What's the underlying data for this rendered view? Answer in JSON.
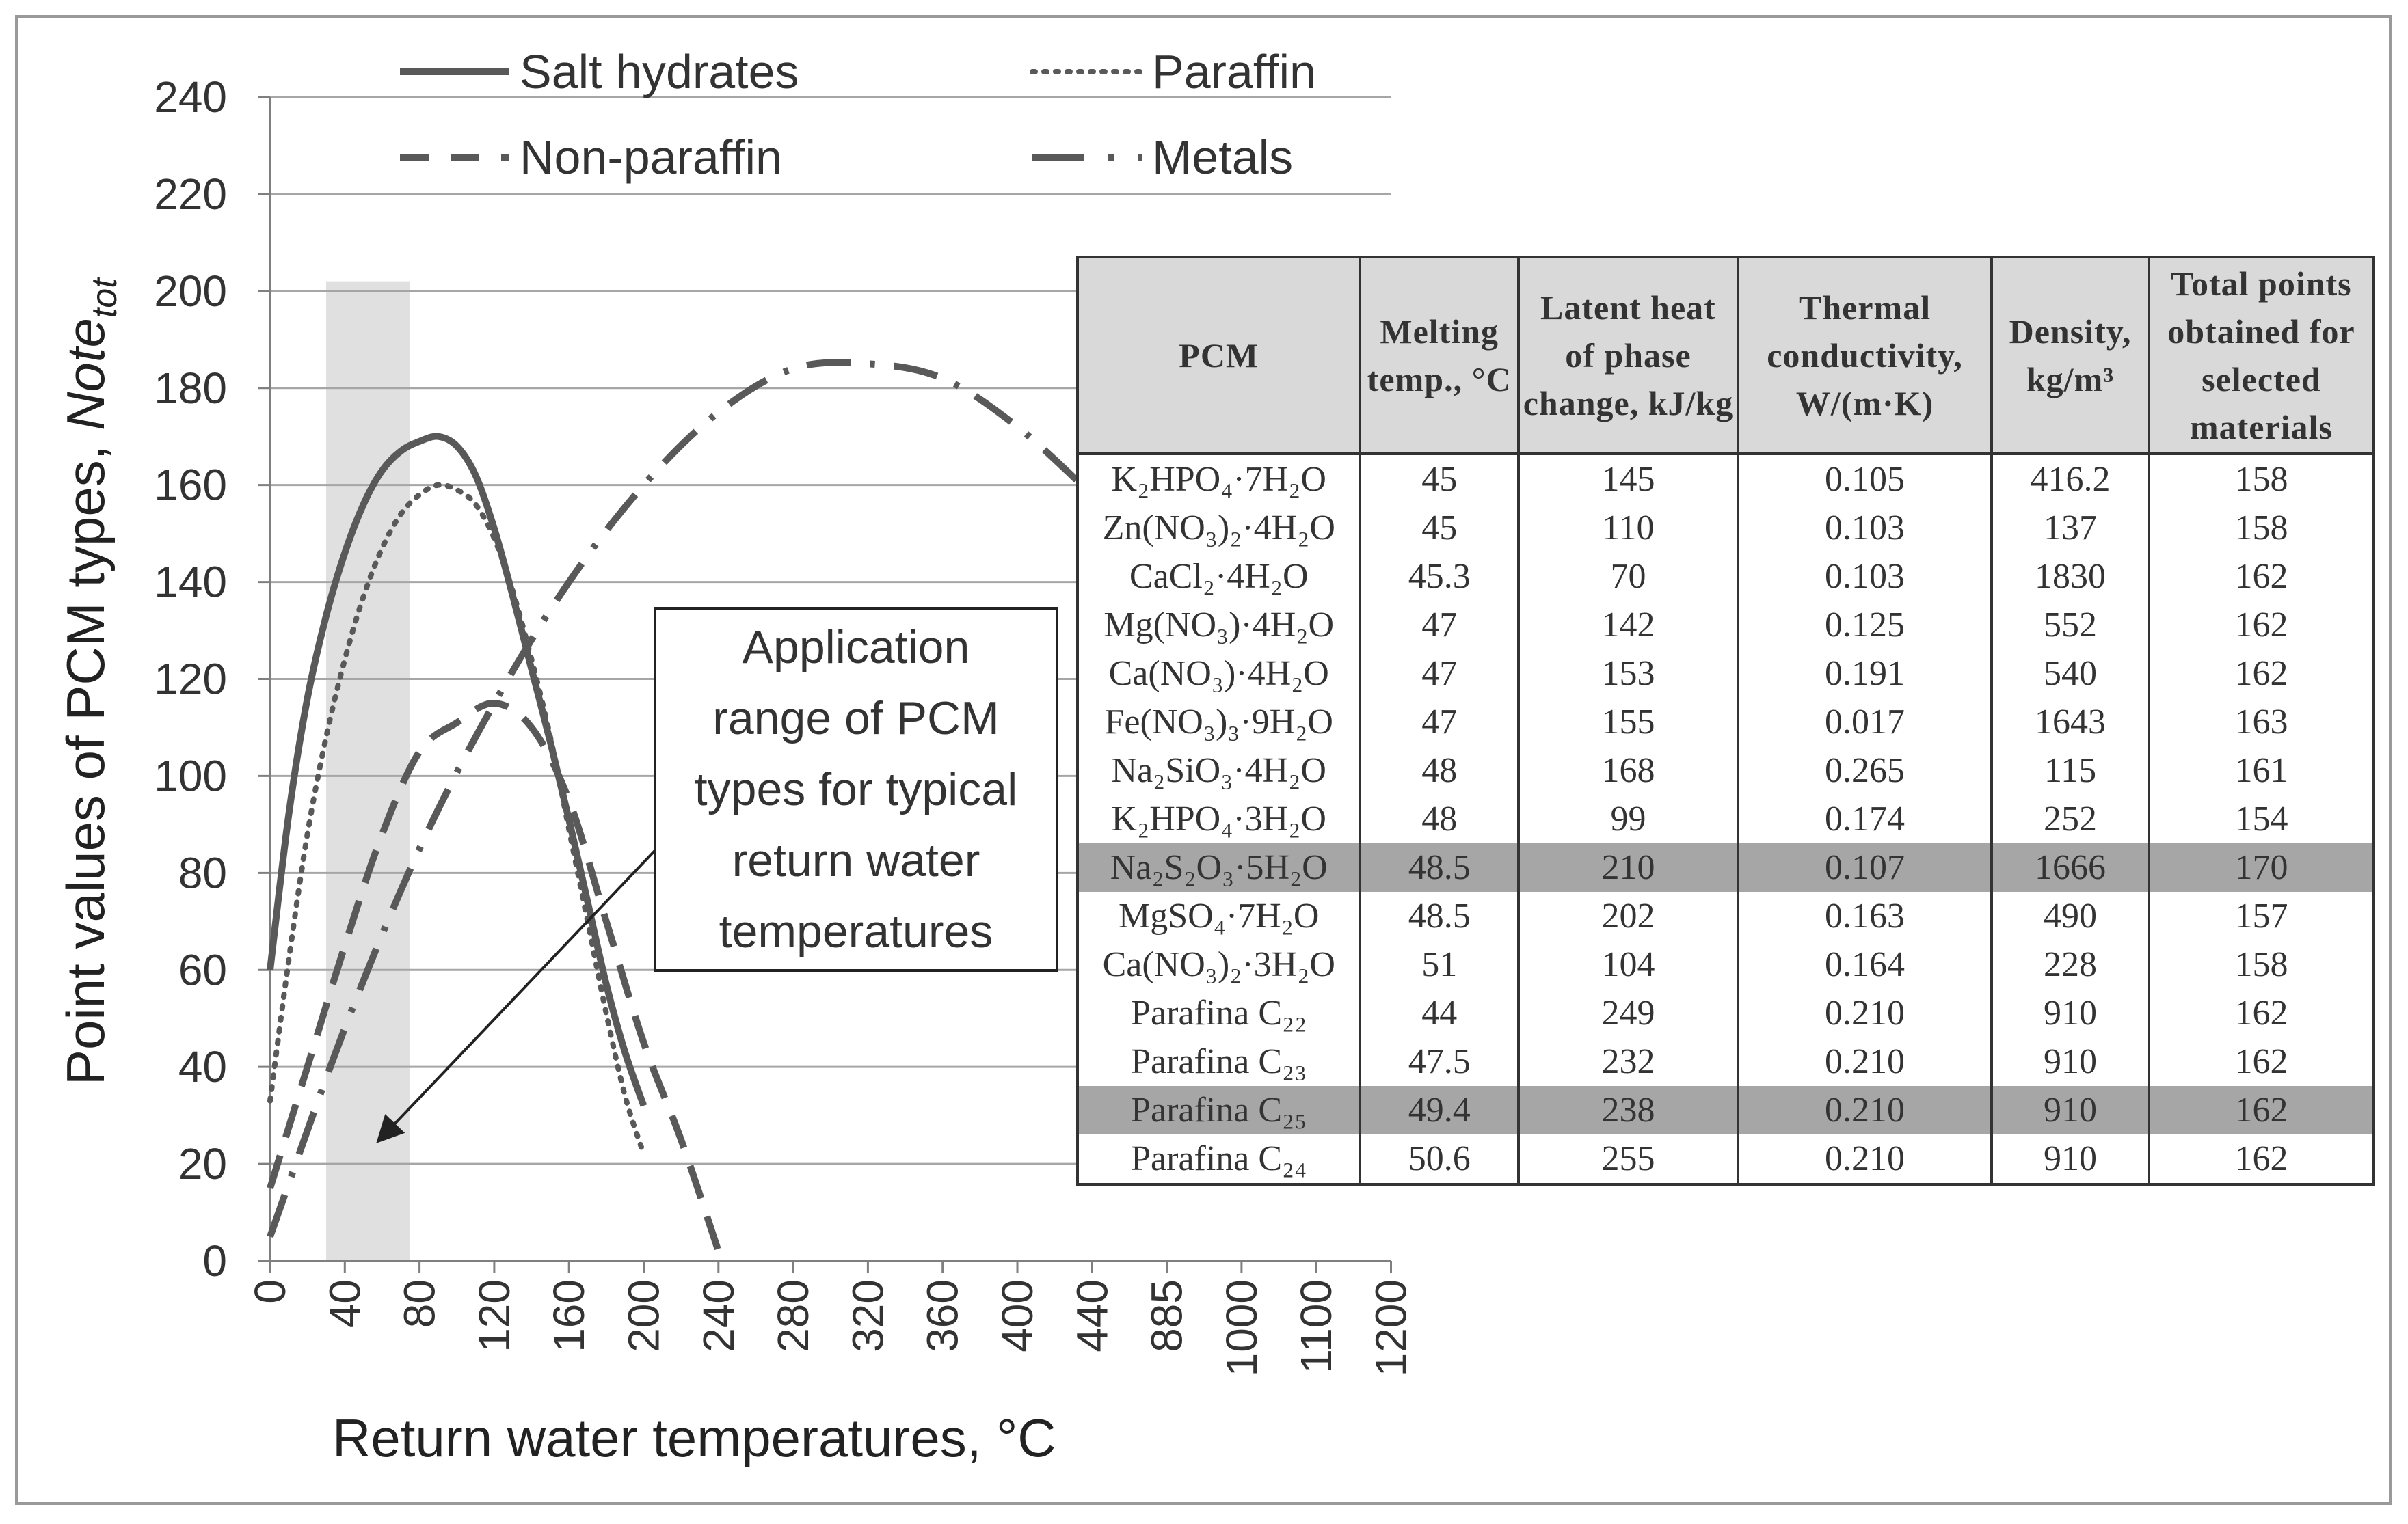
{
  "chart_data": {
    "type": "line",
    "title": "",
    "xlabel": "Return  water temperatures, °C",
    "ylabel_main": "Point values of PCM types, ",
    "ylabel_italic": "Note",
    "ylabel_sub": "tot",
    "categories": [
      "0",
      "40",
      "80",
      "120",
      "160",
      "200",
      "240",
      "280",
      "320",
      "360",
      "400",
      "440",
      "885",
      "1000",
      "1100",
      "1200"
    ],
    "ylim": [
      0,
      240
    ],
    "yticks": [
      0,
      20,
      40,
      60,
      80,
      100,
      120,
      140,
      160,
      180,
      200,
      220,
      240
    ],
    "grid": true,
    "legend_position": "top",
    "highlight_band": {
      "x_from": 30,
      "x_to": 75,
      "y_to": 202
    },
    "series": [
      {
        "name": "Salt hydrates",
        "style": "solid",
        "x": [
          0,
          10,
          20,
          30,
          40,
          50,
          60,
          70,
          80,
          90,
          100,
          110,
          120,
          130,
          140,
          150,
          160,
          170,
          180,
          190,
          200
        ],
        "values": [
          60,
          92,
          116,
          133,
          146,
          156,
          163,
          167,
          169,
          170,
          168,
          162,
          151,
          137,
          122,
          107,
          91,
          74,
          57,
          43,
          32
        ]
      },
      {
        "name": "Paraffin",
        "style": "dotted",
        "x": [
          0,
          10,
          20,
          30,
          40,
          50,
          60,
          70,
          80,
          90,
          100,
          110,
          120,
          130,
          140,
          150,
          160,
          170,
          180,
          190,
          200
        ],
        "values": [
          33,
          62,
          88,
          108,
          124,
          137,
          147,
          154,
          158,
          160,
          159,
          156,
          149,
          138,
          124,
          108,
          89,
          70,
          51,
          34,
          22
        ]
      },
      {
        "name": "Non-paraffin",
        "style": "dashed",
        "x": [
          0,
          20,
          40,
          60,
          80,
          100,
          120,
          140,
          160,
          180,
          200,
          220,
          240
        ],
        "values": [
          15,
          40,
          65,
          88,
          105,
          111,
          115,
          110,
          95,
          70,
          45,
          25,
          2
        ]
      },
      {
        "name": "Metals",
        "style": "dashdot",
        "x": [
          0,
          40,
          80,
          120,
          160,
          200,
          240,
          280,
          320,
          360,
          400,
          440
        ],
        "values": [
          5,
          48,
          85,
          115,
          140,
          160,
          175,
          184,
          185,
          182,
          172,
          158
        ]
      }
    ]
  },
  "annotation": {
    "text": "Application\nrange of PCM\ntypes for typical\nreturn water\ntemperatures"
  },
  "table": {
    "headers": [
      "PCM",
      "Melting temp., °C",
      "Latent heat of phase change, kJ/kg",
      "Thermal conductivity, W/(m·K)",
      "Density, kg/m³",
      "Total points obtained for selected materials"
    ],
    "rows": [
      [
        "K₂HPO₄·7H₂O",
        "45",
        "145",
        "0.105",
        "416.2",
        "158"
      ],
      [
        "Zn(NO₃)₂·4H₂O",
        "45",
        "110",
        "0.103",
        "137",
        "158"
      ],
      [
        "CaCl₂·4H₂O",
        "45.3",
        "70",
        "0.103",
        "1830",
        "162"
      ],
      [
        "Mg(NO₃)·4H₂O",
        "47",
        "142",
        "0.125",
        "552",
        "162"
      ],
      [
        "Ca(NO₃)·4H₂O",
        "47",
        "153",
        "0.191",
        "540",
        "162"
      ],
      [
        "Fe(NO₃)₃·9H₂O",
        "47",
        "155",
        "0.017",
        "1643",
        "163"
      ],
      [
        "Na₂SiO₃·4H₂O",
        "48",
        "168",
        "0.265",
        "115",
        "161"
      ],
      [
        "K₂HPO₄·3H₂O",
        "48",
        "99",
        "0.174",
        "252",
        "154"
      ],
      [
        "Na₂S₂O₃·5H₂O",
        "48.5",
        "210",
        "0.107",
        "1666",
        "170"
      ],
      [
        "MgSO₄·7H₂O",
        "48.5",
        "202",
        "0.163",
        "490",
        "157"
      ],
      [
        "Ca(NO₃)₂·3H₂O",
        "51",
        "104",
        "0.164",
        "228",
        "158"
      ],
      [
        "Parafina C₂₂",
        "44",
        "249",
        "0.210",
        "910",
        "162"
      ],
      [
        "Parafina C₂₃",
        "47.5",
        "232",
        "0.210",
        "910",
        "162"
      ],
      [
        "Parafina C₂₅",
        "49.4",
        "238",
        "0.210",
        "910",
        "162"
      ],
      [
        "Parafina C₂₄",
        "50.6",
        "255",
        "0.210",
        "910",
        "162"
      ]
    ],
    "highlighted_rows": [
      8,
      13
    ]
  },
  "colors": {
    "line": "#595959",
    "grid": "#a6a6a6",
    "band": "#e0e0e0",
    "header_bg": "#d9d9d9",
    "highlight_bg": "#a6a6a6"
  }
}
